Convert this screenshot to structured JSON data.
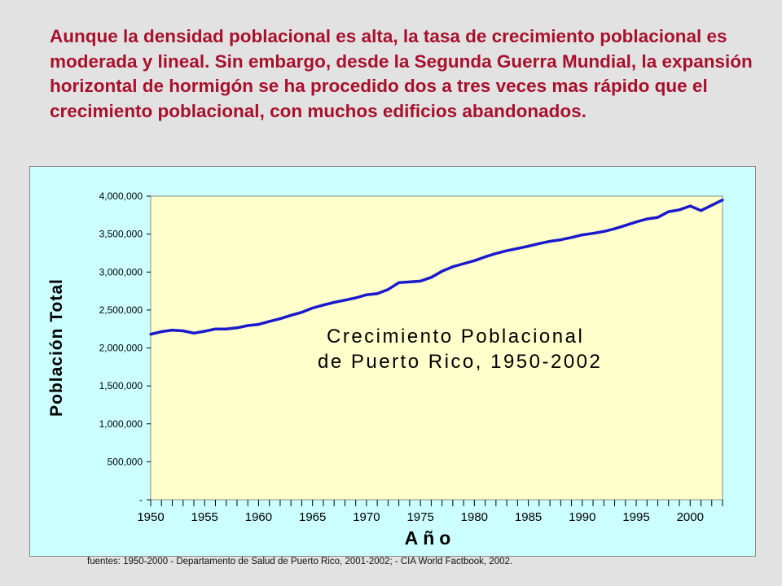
{
  "headline": "Aunque la densidad poblacional es alta, la tasa de crecimiento poblacional es moderada y lineal. Sin embargo, desde la Segunda Guerra Mundial, la expansión horizontal de hormigón se ha procedido dos a tres veces mas rápido que el crecimiento poblacional, con muchos edificios abandonados.",
  "source_note": "fuentes: 1950-2000 - Departamento de Salud de Puerto Rico, 2001-2002; - CIA World Factbook, 2002.",
  "chart_data": {
    "type": "line",
    "annotation_lines": [
      "Crecimiento Poblacional",
      "de Puerto Rico, 1950-2002"
    ],
    "xlabel": "Año",
    "ylabel": "Población Total",
    "xlim": [
      1950,
      2003
    ],
    "ylim": [
      0,
      4000000
    ],
    "x_tick_labels": [
      "1950",
      "1955",
      "1960",
      "1965",
      "1970",
      "1975",
      "1980",
      "1985",
      "1990",
      "1995",
      "2000"
    ],
    "y_tick_labels": [
      "-",
      "500,000",
      "1,000,000",
      "1,500,000",
      "2,000,000",
      "2,500,000",
      "3,000,000",
      "3,500,000",
      "4,000,000"
    ],
    "grid": false,
    "plot_background": "#ffffcc",
    "panel_background": "#ccffff",
    "line_color": "#1a1acc",
    "series": [
      {
        "x": [
          1950,
          1951,
          1952,
          1953,
          1954,
          1955,
          1956,
          1957,
          1958,
          1959,
          1960,
          1961,
          1962,
          1963,
          1964,
          1965,
          1966,
          1967,
          1968,
          1969,
          1970,
          1971,
          1972,
          1973,
          1974,
          1975,
          1976,
          1977,
          1978,
          1979,
          1980,
          1981,
          1982,
          1983,
          1984,
          1985,
          1986,
          1987,
          1988,
          1989,
          1990,
          1991,
          1992,
          1993,
          1994,
          1995,
          1996,
          1997,
          1998,
          1999,
          2000,
          2001,
          2002,
          2003
        ],
        "values": [
          2180000,
          2215000,
          2235000,
          2225000,
          2195000,
          2220000,
          2250000,
          2250000,
          2265000,
          2295000,
          2310000,
          2350000,
          2385000,
          2430000,
          2470000,
          2525000,
          2565000,
          2600000,
          2630000,
          2660000,
          2700000,
          2715000,
          2770000,
          2860000,
          2870000,
          2880000,
          2930000,
          3010000,
          3070000,
          3110000,
          3150000,
          3200000,
          3245000,
          3280000,
          3310000,
          3340000,
          3375000,
          3405000,
          3425000,
          3455000,
          3490000,
          3510000,
          3535000,
          3570000,
          3615000,
          3660000,
          3700000,
          3720000,
          3795000,
          3820000,
          3870000,
          3810000,
          3880000,
          3950000
        ]
      }
    ]
  }
}
